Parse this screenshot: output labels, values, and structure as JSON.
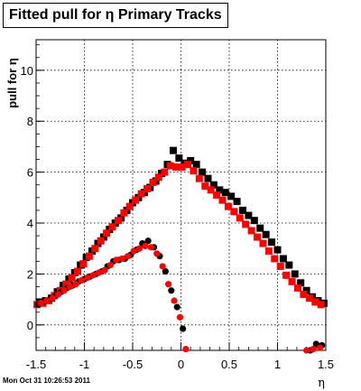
{
  "chart_data": {
    "type": "scatter",
    "title": "Fitted pull for η  Primary Tracks",
    "xlabel": "η",
    "ylabel": "pull for η",
    "xlim": [
      -1.5,
      1.5
    ],
    "ylim": [
      -1.0,
      11.2
    ],
    "x_ticks": [
      "-1.5",
      "-1",
      "-0.5",
      "0",
      "0.5",
      "1",
      "1.5"
    ],
    "y_ticks": [
      "0",
      "2",
      "4",
      "6",
      "8",
      "10"
    ],
    "grid": true,
    "series": [
      {
        "marker": "square",
        "color": "#000000",
        "x": [
          -1.46,
          -1.4,
          -1.34,
          -1.28,
          -1.22,
          -1.16,
          -1.1,
          -1.04,
          -0.98,
          -0.92,
          -0.86,
          -0.8,
          -0.74,
          -0.68,
          -0.62,
          -0.56,
          -0.5,
          -0.44,
          -0.38,
          -0.32,
          -0.26,
          -0.2,
          -0.14,
          -0.08,
          -0.02,
          0.04,
          0.1,
          0.16,
          0.22,
          0.28,
          0.34,
          0.4,
          0.46,
          0.52,
          0.58,
          0.64,
          0.7,
          0.76,
          0.82,
          0.88,
          0.94,
          1.0,
          1.06,
          1.12,
          1.18,
          1.24,
          1.3,
          1.36,
          1.42,
          1.48
        ],
        "y": [
          0.9,
          0.95,
          1.05,
          1.3,
          1.55,
          1.8,
          2.05,
          2.35,
          2.65,
          2.9,
          3.2,
          3.45,
          3.75,
          4.0,
          4.2,
          4.5,
          4.8,
          5.0,
          5.2,
          5.4,
          5.65,
          5.95,
          6.3,
          6.85,
          6.55,
          6.35,
          6.45,
          6.3,
          6.0,
          5.75,
          5.5,
          5.3,
          5.2,
          5.05,
          4.85,
          4.5,
          4.3,
          4.1,
          3.8,
          3.55,
          3.25,
          2.95,
          2.6,
          2.35,
          2.0,
          1.65,
          1.35,
          1.1,
          0.95,
          0.85
        ]
      },
      {
        "marker": "square",
        "color": "#ff0000",
        "x": [
          -1.49,
          -1.43,
          -1.37,
          -1.31,
          -1.25,
          -1.19,
          -1.13,
          -1.07,
          -1.01,
          -0.95,
          -0.89,
          -0.83,
          -0.77,
          -0.71,
          -0.65,
          -0.59,
          -0.53,
          -0.47,
          -0.41,
          -0.35,
          -0.29,
          -0.23,
          -0.17,
          -0.11,
          -0.05,
          0.01,
          0.07,
          0.13,
          0.19,
          0.25,
          0.31,
          0.37,
          0.43,
          0.49,
          0.55,
          0.61,
          0.67,
          0.73,
          0.79,
          0.85,
          0.91,
          0.97,
          1.03,
          1.09,
          1.15,
          1.21,
          1.27,
          1.33,
          1.39,
          1.45
        ],
        "y": [
          0.8,
          0.85,
          0.95,
          1.15,
          1.35,
          1.6,
          1.85,
          2.1,
          2.4,
          2.7,
          3.0,
          3.3,
          3.6,
          3.85,
          4.1,
          4.4,
          4.65,
          4.9,
          5.15,
          5.35,
          5.6,
          5.8,
          6.0,
          6.25,
          6.2,
          6.2,
          6.3,
          6.05,
          5.75,
          5.45,
          5.3,
          5.1,
          4.9,
          4.65,
          4.45,
          4.2,
          3.95,
          3.7,
          3.45,
          3.2,
          2.9,
          2.6,
          2.3,
          1.95,
          1.7,
          1.45,
          1.2,
          1.05,
          0.9,
          0.8
        ]
      },
      {
        "marker": "circle",
        "color": "#000000",
        "x": [
          -1.48,
          -1.42,
          -1.36,
          -1.3,
          -1.24,
          -1.18,
          -1.12,
          -1.06,
          -1.0,
          -0.94,
          -0.88,
          -0.82,
          -0.76,
          -0.7,
          -0.64,
          -0.58,
          -0.52,
          -0.46,
          -0.4,
          -0.34,
          -0.28,
          -0.22,
          -0.16,
          -0.1,
          -0.04,
          0.02,
          1.34,
          1.4,
          1.46
        ],
        "y": [
          0.8,
          0.9,
          1.0,
          1.15,
          1.3,
          1.45,
          1.55,
          1.7,
          1.8,
          1.9,
          2.0,
          2.1,
          2.3,
          2.5,
          2.55,
          2.6,
          2.75,
          2.95,
          3.2,
          3.3,
          3.05,
          2.7,
          2.1,
          1.35,
          0.7,
          -0.15,
          -1.0,
          -0.75,
          -0.8
        ]
      },
      {
        "marker": "circle",
        "color": "#ff0000",
        "x": [
          -1.45,
          -1.39,
          -1.33,
          -1.27,
          -1.21,
          -1.15,
          -1.09,
          -1.03,
          -0.97,
          -0.91,
          -0.85,
          -0.79,
          -0.73,
          -0.67,
          -0.61,
          -0.55,
          -0.49,
          -0.43,
          -0.37,
          -0.31,
          -0.25,
          -0.19,
          -0.13,
          -0.07,
          -0.01,
          0.05,
          1.3,
          1.37,
          1.44
        ],
        "y": [
          0.85,
          0.95,
          1.05,
          1.2,
          1.35,
          1.5,
          1.6,
          1.75,
          1.85,
          1.95,
          2.05,
          2.15,
          2.35,
          2.55,
          2.6,
          2.7,
          2.9,
          3.0,
          3.1,
          3.05,
          2.8,
          2.3,
          1.6,
          0.95,
          0.3,
          -0.95,
          -1.0,
          -0.95,
          -0.9
        ]
      }
    ]
  },
  "footer": {
    "timestamp": "Mon Oct 31 10:26:53 2011"
  }
}
